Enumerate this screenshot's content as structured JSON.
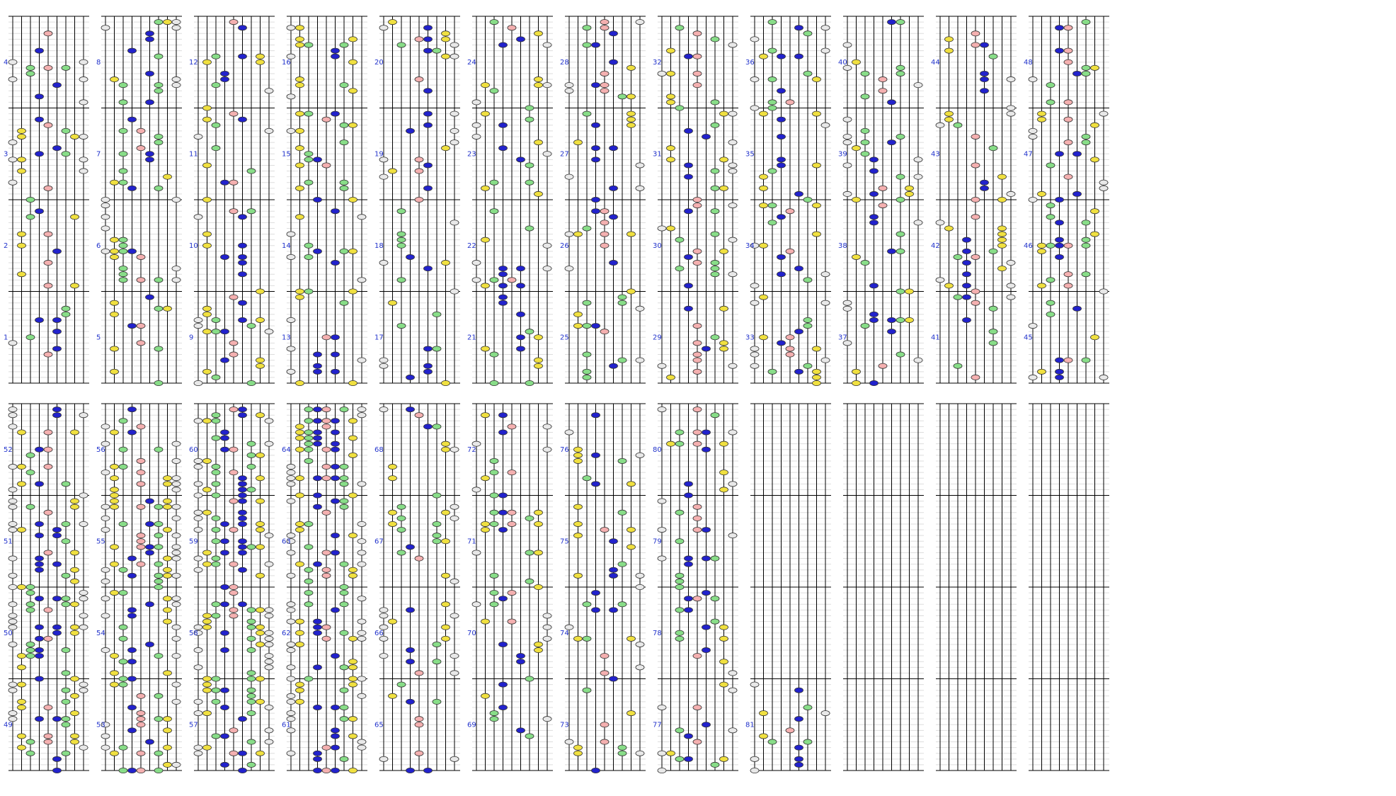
{
  "measure_numbers": [
    1,
    2,
    3,
    4,
    5,
    6,
    7,
    8,
    9,
    10,
    11,
    12,
    13,
    14,
    15,
    16,
    17,
    18,
    19,
    20,
    21,
    22,
    23,
    24,
    25,
    26,
    27,
    28,
    29,
    30,
    31,
    32,
    33,
    34,
    35,
    36,
    37,
    38,
    39,
    40,
    41,
    42,
    43,
    44,
    45,
    46,
    47,
    48,
    49,
    50,
    51,
    52,
    53,
    54,
    55,
    56,
    57,
    58,
    59,
    60,
    61,
    62,
    63,
    64,
    65,
    66,
    67,
    68,
    69,
    70,
    71,
    72,
    73,
    74,
    75,
    76,
    77,
    78,
    79,
    80,
    81
  ]
}
